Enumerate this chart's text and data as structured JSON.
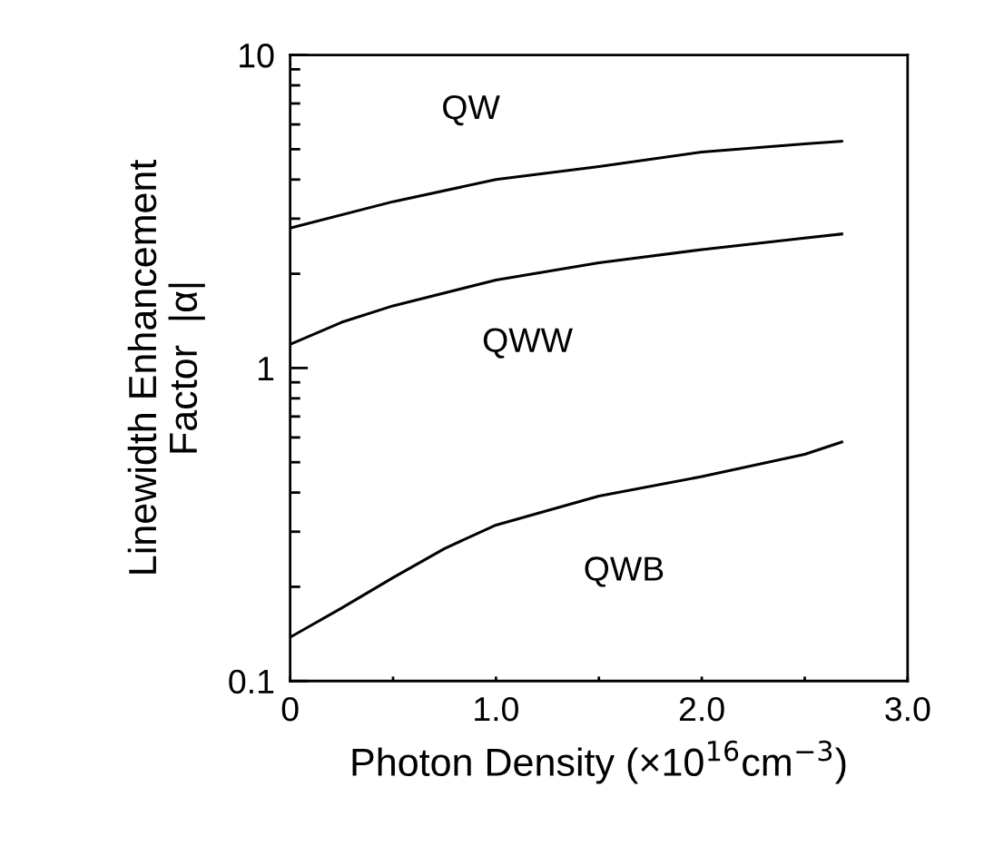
{
  "chart_data": {
    "type": "line",
    "xlabel": "Photon Density (×10$^{16}$cm$^{−3}$)",
    "ylabel": "Linewidth Enhancement\nFactor  |α|",
    "log": "y",
    "grid": false,
    "legend": false,
    "marker": "none",
    "line_style": "solid",
    "xlim": [
      0,
      3.0
    ],
    "ylim": [
      0.1,
      10
    ],
    "xticks": [
      {
        "value": 0,
        "label": "0"
      },
      {
        "value": 0.5,
        "label": null
      },
      {
        "value": 1.0,
        "label": "1.0"
      },
      {
        "value": 1.5,
        "label": null
      },
      {
        "value": 2.0,
        "label": "2.0"
      },
      {
        "value": 2.5,
        "label": null
      },
      {
        "value": 3.0,
        "label": "3.0"
      }
    ],
    "yticks": [
      {
        "value": 0.1,
        "label": "0.1"
      },
      1,
      10
    ],
    "series": [
      {
        "name": "QW",
        "color": "#000000",
        "x": [
          0,
          0.5,
          1.0,
          1.5,
          2.0,
          2.5,
          2.68
        ],
        "values": [
          2.8,
          3.4,
          4.0,
          4.4,
          4.9,
          5.2,
          5.3
        ]
      },
      {
        "name": "QWW",
        "color": "#000000",
        "x": [
          0,
          0.25,
          0.5,
          1.0,
          1.5,
          2.0,
          2.5,
          2.68
        ],
        "values": [
          1.19,
          1.4,
          1.58,
          1.91,
          2.17,
          2.39,
          2.6,
          2.68
        ]
      },
      {
        "name": "QWB",
        "color": "#000000",
        "x": [
          0,
          0.25,
          0.5,
          0.75,
          1.0,
          1.5,
          2.0,
          2.5,
          2.68
        ],
        "values": [
          0.138,
          0.171,
          0.214,
          0.265,
          0.315,
          0.39,
          0.45,
          0.53,
          0.58
        ]
      }
    ]
  }
}
